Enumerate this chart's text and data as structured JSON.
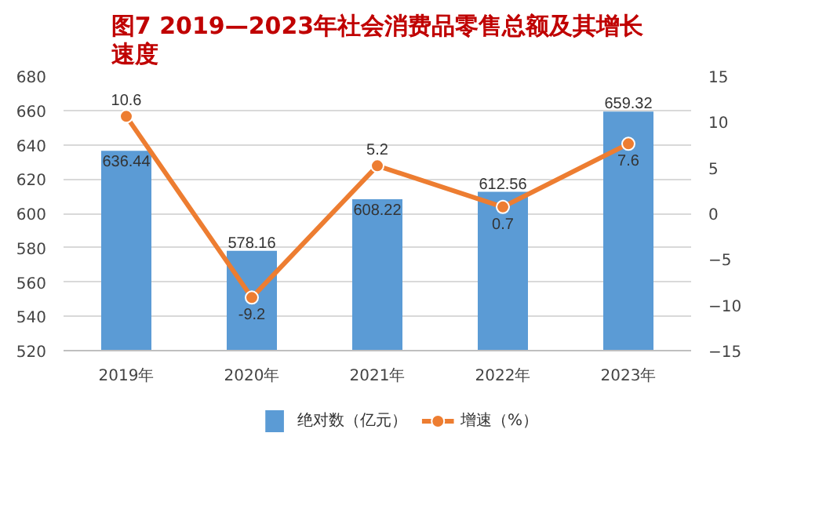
{
  "chart_data": {
    "type": "bar",
    "title": "图7 2019—2023年社会消费品零售总额及其增长速度",
    "categories": [
      "2019年",
      "2020年",
      "2021年",
      "2022年",
      "2023年"
    ],
    "series": [
      {
        "name": "绝对数（亿元）",
        "color": "#5b9bd5",
        "values": [
          636.44,
          578.16,
          608.22,
          612.56,
          659.32
        ]
      },
      {
        "name": "增速（%）",
        "type": "line",
        "axis": "y2",
        "color": "#ed7d31",
        "values": [
          10.6,
          -9.2,
          5.2,
          0.7,
          7.6
        ]
      }
    ],
    "ylim": [
      520,
      680
    ],
    "yticks": [
      520,
      540,
      560,
      580,
      600,
      620,
      640,
      660,
      680
    ],
    "y2lim": [
      -15,
      15
    ],
    "y2ticks": [
      -15,
      -10,
      -5,
      0,
      5,
      10,
      15
    ],
    "grid": "y",
    "legend": "bottom",
    "marker": "circle",
    "line_style": "solid",
    "data_labels": true
  }
}
